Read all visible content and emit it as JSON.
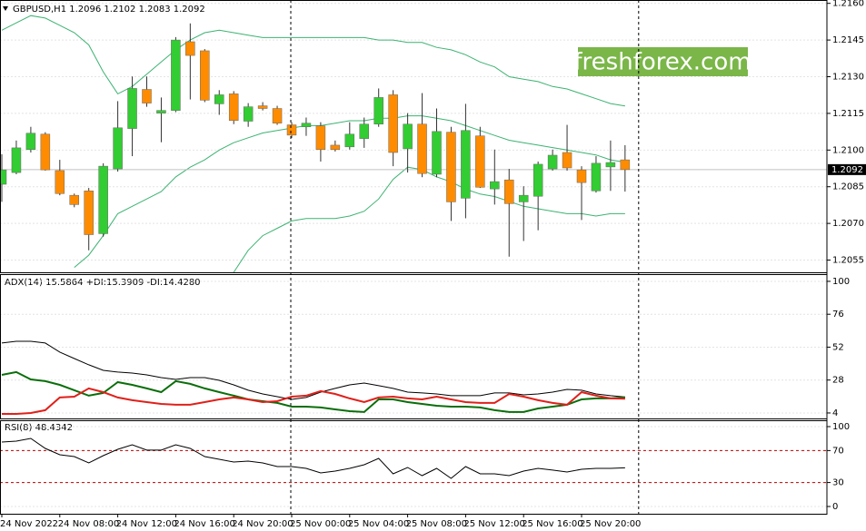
{
  "watermark": "freshforex.com",
  "chart_data": [
    {
      "type": "candlestick",
      "title": "GBPUSD,H1  1.2096 1.2102 1.2083 1.2092",
      "categories": [
        "24 Nov 2022",
        null,
        null,
        null,
        "24 Nov 08:00",
        null,
        null,
        null,
        "24 Nov 12:00",
        null,
        null,
        null,
        "24 Nov 16:00",
        null,
        null,
        null,
        "24 Nov 20:00",
        null,
        null,
        null,
        "25 Nov 00:00",
        null,
        null,
        null,
        "25 Nov 04:00",
        null,
        null,
        null,
        "25 Nov 08:00",
        null,
        null,
        null,
        "25 Nov 12:00",
        null,
        null,
        null,
        "25 Nov 16:00",
        null,
        null,
        null,
        "25 Nov 20:00",
        null,
        null,
        null
      ],
      "open": [
        1.2086,
        1.20908,
        1.21002,
        1.21065,
        1.20916,
        1.20815,
        1.20833,
        1.20658,
        1.20923,
        1.21088,
        1.21248,
        1.21151,
        1.21162,
        1.21443,
        1.21406,
        1.21189,
        1.2123,
        1.21118,
        1.21181,
        1.2117,
        1.21103,
        1.21095,
        1.21099,
        1.2102,
        1.21013,
        1.21047,
        1.21106,
        1.21226,
        1.21005,
        1.21106,
        1.20901,
        1.21073,
        1.20803,
        1.21058,
        1.20841,
        1.20878,
        1.20788,
        1.20811,
        1.20923,
        1.2099,
        1.20919,
        1.20833,
        1.20931,
        1.2096
      ],
      "high": [
        1.20983,
        1.21039,
        1.21095,
        1.21073,
        1.2096,
        1.20822,
        1.20845,
        1.20946,
        1.212,
        1.21301,
        1.21301,
        1.21215,
        1.21462,
        1.21518,
        1.21413,
        1.21245,
        1.21241,
        1.21192,
        1.21196,
        1.21181,
        1.21114,
        1.21133,
        1.21114,
        1.21039,
        1.21114,
        1.21133,
        1.21252,
        1.21245,
        1.21151,
        1.21233,
        1.2117,
        1.21095,
        1.21189,
        1.21095,
        1.21002,
        1.20923,
        1.20852,
        1.20953,
        1.21002,
        1.21103,
        1.20934,
        1.20975,
        1.21039,
        1.2102
      ],
      "low": [
        1.20788,
        1.20901,
        1.2099,
        1.20916,
        1.20815,
        1.20766,
        1.2059,
        1.20646,
        1.20912,
        1.20975,
        1.21177,
        1.21032,
        1.21155,
        1.21207,
        1.21196,
        1.21144,
        1.21106,
        1.21095,
        1.21162,
        1.21103,
        1.2105,
        1.21058,
        1.20953,
        1.20994,
        1.21002,
        1.21009,
        1.21095,
        1.20934,
        1.20908,
        1.20889,
        1.20889,
        1.2071,
        1.20721,
        1.20845,
        1.20777,
        1.20564,
        1.20628,
        1.20672,
        1.20916,
        1.20916,
        1.20714,
        1.20826,
        1.20833,
        1.2083
      ],
      "close": [
        1.20919,
        1.21009,
        1.21069,
        1.20919,
        1.20822,
        1.20777,
        1.20654,
        1.20934,
        1.21091,
        1.21252,
        1.21192,
        1.21162,
        1.2145,
        1.21387,
        1.21204,
        1.21226,
        1.21121,
        1.21177,
        1.2117,
        1.2111,
        1.21061,
        1.2111,
        1.21002,
        1.21002,
        1.21065,
        1.21106,
        1.21215,
        1.2099,
        1.21106,
        1.20904,
        1.21076,
        1.20788,
        1.2108,
        1.20848,
        1.20871,
        1.20781,
        1.20815,
        1.20942,
        1.20979,
        1.20927,
        1.20867,
        1.20946,
        1.20949,
        1.2092
      ],
      "up_color": "#32cd32",
      "down_color": "#ff8c00",
      "series": [
        {
          "name": "BB upper",
          "color": "#3cb371",
          "values": [
            1.2149,
            1.2152,
            1.2155,
            1.2154,
            1.2151,
            1.2148,
            1.2143,
            1.2132,
            1.2123,
            1.2126,
            1.2131,
            1.2136,
            1.2141,
            1.2145,
            1.2148,
            1.2149,
            1.2148,
            1.2147,
            1.2146,
            1.2146,
            1.2146,
            1.2146,
            1.2146,
            1.2146,
            1.2146,
            1.2146,
            1.2145,
            1.2145,
            1.2144,
            1.2144,
            1.2142,
            1.2141,
            1.2139,
            1.2136,
            1.2134,
            1.213,
            1.2129,
            1.2128,
            1.2126,
            1.2125,
            1.2123,
            1.2121,
            1.2119,
            1.2118
          ]
        },
        {
          "name": "BB middle",
          "color": "#3cb371",
          "values": [
            null,
            null,
            null,
            null,
            null,
            1.2052,
            1.2057,
            1.2065,
            1.2074,
            1.2077,
            1.208,
            1.2083,
            1.2089,
            1.2093,
            1.2096,
            1.21,
            1.2103,
            1.2105,
            1.2107,
            1.2108,
            1.2109,
            1.211,
            1.211,
            1.2111,
            1.2112,
            1.2112,
            1.2113,
            1.2113,
            1.2114,
            1.2114,
            1.2113,
            1.2112,
            1.211,
            1.2108,
            1.2106,
            1.2104,
            1.2103,
            1.2102,
            1.2101,
            1.21,
            1.2099,
            1.2098,
            1.2096,
            1.2095
          ]
        },
        {
          "name": "BB lower",
          "color": "#3cb371",
          "values": [
            null,
            null,
            null,
            null,
            null,
            null,
            null,
            null,
            null,
            null,
            null,
            null,
            null,
            null,
            null,
            null,
            1.205,
            1.2059,
            1.2065,
            1.2068,
            1.2071,
            1.2072,
            1.2072,
            1.2072,
            1.2073,
            1.2075,
            1.208,
            1.2088,
            1.2093,
            1.2092,
            1.2089,
            1.2087,
            1.2084,
            1.2082,
            1.2081,
            1.2079,
            1.2077,
            1.2076,
            1.2075,
            1.2074,
            1.2074,
            1.2073,
            1.2074,
            1.2074
          ]
        }
      ],
      "ylim": [
        1.205,
        1.2161
      ],
      "yticks": [
        {
          "value": 1.216,
          "label": "1.2160"
        },
        {
          "value": 1.2145,
          "label": "1.2145"
        },
        {
          "value": 1.213,
          "label": "1.2130"
        },
        {
          "value": 1.2115,
          "label": "1.2115"
        },
        {
          "value": 1.21,
          "label": "1.2100"
        },
        {
          "value": 1.2085,
          "label": "1.2085"
        },
        {
          "value": 1.207,
          "label": "1.2070"
        },
        {
          "value": 1.2055,
          "label": "1.2055"
        }
      ],
      "current_price": {
        "value": 1.2092,
        "label": "1.2092"
      },
      "grid": true
    },
    {
      "type": "line",
      "title": "ADX(14) 15.5864  +DI:15.3909  -DI:14.4280",
      "series": [
        {
          "name": "ADX",
          "color": "#000000",
          "values": [
            55.0,
            56.3,
            56.3,
            55.0,
            48.4,
            43.7,
            39.1,
            35.1,
            33.8,
            33.1,
            31.8,
            29.8,
            28.5,
            29.8,
            29.8,
            27.8,
            24.5,
            20.6,
            17.9,
            15.9,
            13.9,
            15.3,
            19.2,
            21.9,
            24.5,
            25.8,
            23.9,
            21.9,
            19.2,
            18.6,
            17.9,
            16.6,
            16.6,
            16.6,
            18.6,
            18.6,
            17.2,
            17.9,
            19.2,
            21.2,
            20.6,
            17.9,
            16.6,
            15.6
          ]
        },
        {
          "name": "+DI",
          "color": "#0a6e0a",
          "values": [
            31.8,
            33.8,
            28.5,
            27.2,
            24.5,
            20.6,
            16.6,
            18.6,
            26.5,
            24.5,
            21.9,
            19.2,
            27.2,
            25.2,
            21.9,
            19.2,
            16.6,
            13.9,
            12.6,
            11.3,
            8.6,
            8.6,
            8.0,
            6.6,
            5.3,
            4.7,
            13.9,
            13.9,
            11.9,
            10.6,
            9.3,
            8.6,
            8.6,
            8.0,
            6.0,
            4.7,
            4.7,
            7.3,
            8.6,
            10.0,
            13.9,
            14.6,
            14.6,
            15.4
          ]
        },
        {
          "name": "-DI",
          "color": "#e0201a",
          "values": [
            3.3,
            3.3,
            4.0,
            6.0,
            15.3,
            15.9,
            21.9,
            19.2,
            15.3,
            13.3,
            11.9,
            10.6,
            10.0,
            10.0,
            11.9,
            13.9,
            15.3,
            13.9,
            11.9,
            12.6,
            15.9,
            16.6,
            19.9,
            17.9,
            14.6,
            11.9,
            15.3,
            15.9,
            14.6,
            13.9,
            15.9,
            13.9,
            11.9,
            11.3,
            11.3,
            17.9,
            15.9,
            13.3,
            11.3,
            10.0,
            19.2,
            16.6,
            14.6,
            14.4
          ]
        }
      ],
      "ylim": [
        0,
        104.6
      ],
      "yticks": [
        100,
        76,
        52,
        28,
        4
      ],
      "grid": true
    },
    {
      "type": "line",
      "title": "RSI(8) 48.4342",
      "series": [
        {
          "name": "RSI",
          "color": "#000000",
          "values": [
            80.7,
            81.8,
            85.2,
            72.7,
            64.8,
            62.5,
            54.5,
            63.6,
            71.6,
            77.3,
            70.5,
            70.5,
            77.3,
            72.7,
            62.5,
            59.1,
            55.7,
            56.8,
            54.5,
            50.0,
            50.0,
            47.7,
            42.0,
            44.3,
            47.7,
            52.3,
            60.2,
            40.9,
            48.9,
            38.6,
            47.7,
            35.2,
            50.0,
            40.9,
            40.9,
            38.6,
            44.3,
            47.7,
            45.5,
            43.2,
            46.6,
            47.7,
            47.7,
            48.4
          ]
        }
      ],
      "levels": [
        70,
        30
      ],
      "level_color": "#c00000",
      "ylim": [
        -9.1,
        106.8
      ],
      "yticks": [
        100,
        70,
        30,
        0
      ],
      "grid": true
    }
  ]
}
